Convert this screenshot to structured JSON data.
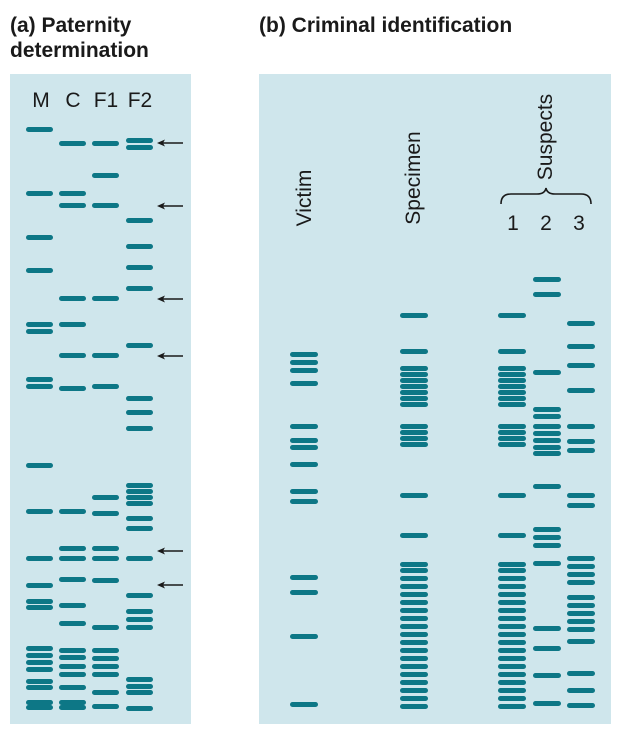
{
  "panel_a": {
    "title": "(a) Paternity determination",
    "lane_labels": [
      "M",
      "C",
      "F1",
      "F2"
    ]
  },
  "panel_b": {
    "title": "(b) Criminal identification",
    "victim_label": "Victim",
    "specimen_label": "Specimen",
    "suspects_label": "Suspects",
    "suspect_numbers": [
      "1",
      "2",
      "3"
    ]
  },
  "colors": {
    "band": "#0d7786",
    "panel": "#cfe6ec",
    "arrow": "#1a1a1a"
  },
  "icons": {
    "arrow": "left-arrow-icon",
    "brace": "curly-brace-icon"
  }
}
